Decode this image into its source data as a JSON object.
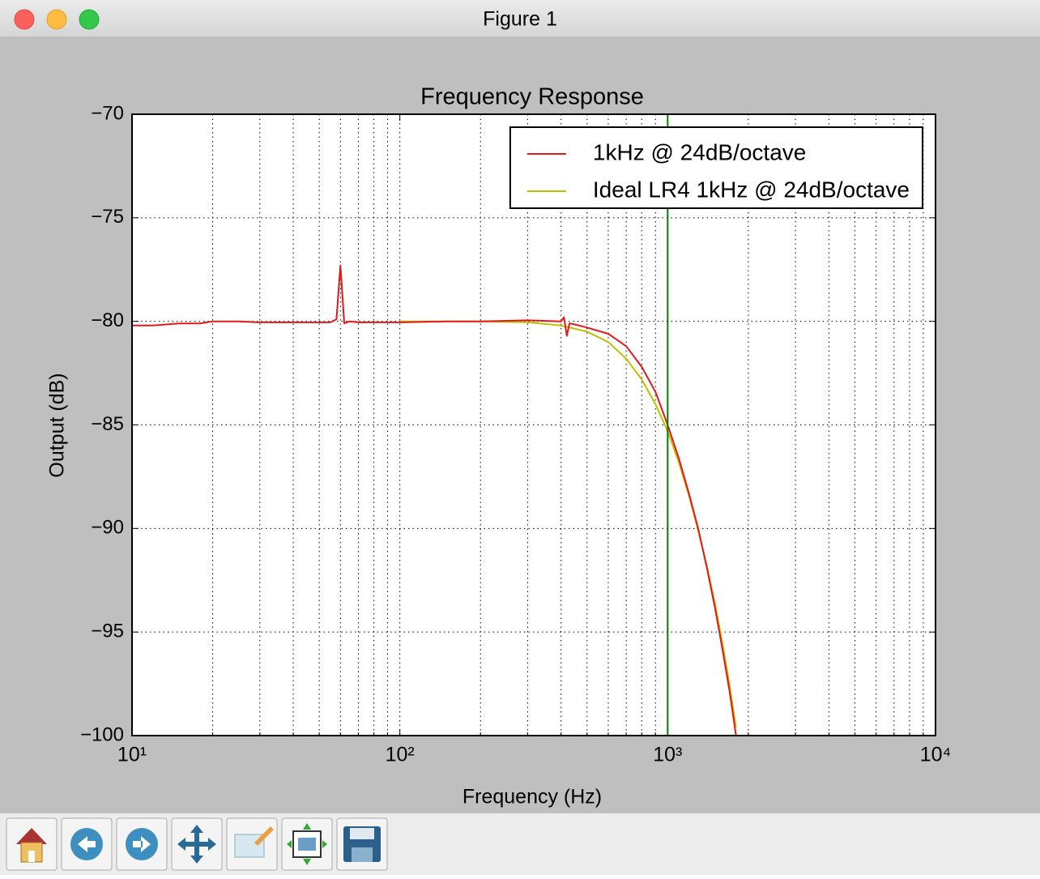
{
  "window": {
    "title": "Figure 1"
  },
  "chart_data": {
    "type": "line",
    "title": "Frequency Response",
    "x_label": "Frequency (Hz)",
    "y_label": "Output (dB)",
    "xscale": "log",
    "xlim": [
      10,
      10000
    ],
    "xticks": [
      {
        "value": 10,
        "label": "10¹"
      },
      {
        "value": 100,
        "label": "10²"
      },
      {
        "value": 1000,
        "label": "10³"
      },
      {
        "value": 10000,
        "label": "10⁴"
      }
    ],
    "ylim": [
      -100,
      -70
    ],
    "yticks": [
      {
        "value": -70,
        "label": "−70"
      },
      {
        "value": -75,
        "label": "−75"
      },
      {
        "value": -80,
        "label": "−80"
      },
      {
        "value": -85,
        "label": "−85"
      },
      {
        "value": -90,
        "label": "−90"
      },
      {
        "value": -95,
        "label": "−95"
      },
      {
        "value": -100,
        "label": "−100"
      }
    ],
    "grid": true,
    "legend": "upper right",
    "vline": {
      "x": 1000,
      "color": "#007f00"
    },
    "series": [
      {
        "name": "1kHz @ 24dB/octave",
        "color": "#e31a1c",
        "x": [
          10,
          12,
          15,
          18,
          20,
          25,
          30,
          40,
          50,
          55,
          58,
          60,
          62,
          65,
          70,
          80,
          100,
          150,
          200,
          300,
          400,
          410,
          420,
          430,
          450,
          500,
          600,
          700,
          800,
          900,
          1000,
          1100,
          1200,
          1300,
          1400,
          1500,
          1600,
          1700,
          1800
        ],
        "values": [
          -80.2,
          -80.2,
          -80.1,
          -80.1,
          -80.0,
          -80.0,
          -80.05,
          -80.05,
          -80.05,
          -80.05,
          -79.9,
          -77.3,
          -80.1,
          -80.0,
          -80.05,
          -80.05,
          -80.05,
          -80.0,
          -80.0,
          -79.95,
          -80.0,
          -79.8,
          -80.7,
          -80.1,
          -80.15,
          -80.3,
          -80.6,
          -81.2,
          -82.2,
          -83.4,
          -85.0,
          -86.6,
          -88.3,
          -90.0,
          -91.9,
          -93.8,
          -95.8,
          -97.8,
          -100.0
        ]
      },
      {
        "name": "Ideal LR4 1kHz @ 24dB/octave",
        "color": "#bfbf00",
        "x": [
          100,
          200,
          300,
          400,
          500,
          600,
          700,
          800,
          900,
          1000,
          1100,
          1200,
          1300,
          1400,
          1500,
          1600,
          1700,
          1800
        ],
        "values": [
          -80.0,
          -80.0,
          -80.05,
          -80.2,
          -80.5,
          -81.0,
          -81.8,
          -82.8,
          -84.0,
          -85.3,
          -86.8,
          -88.4,
          -90.1,
          -91.8,
          -93.6,
          -95.5,
          -97.5,
          -99.6
        ]
      }
    ]
  }
}
